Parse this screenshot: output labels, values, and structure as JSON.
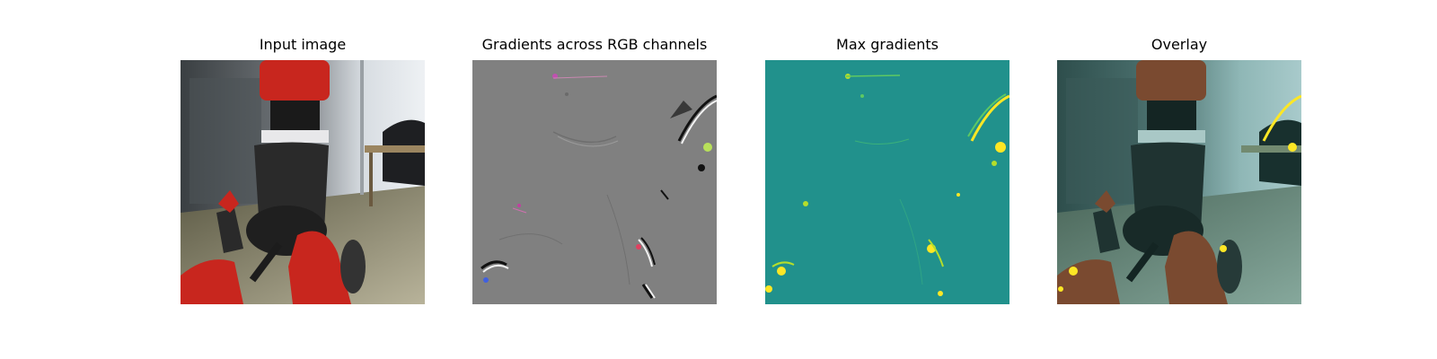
{
  "panels": [
    {
      "title": "Input image"
    },
    {
      "title": "Gradients across RGB channels"
    },
    {
      "title": "Max gradients"
    },
    {
      "title": "Overlay"
    }
  ],
  "colors": {
    "gradient_background": "#808080",
    "max_gradient_background": "#21918c",
    "max_gradient_highlight": "#fde725",
    "robot_red": "#c8261e",
    "robot_black": "#2a2a2a"
  }
}
